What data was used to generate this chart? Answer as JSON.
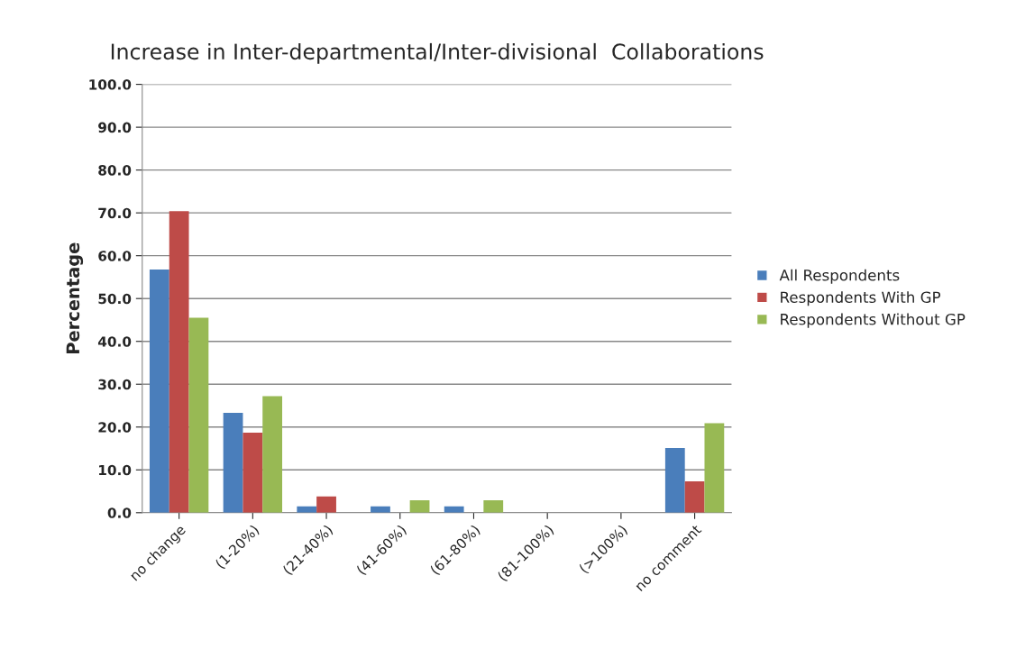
{
  "chart_data": {
    "type": "bar",
    "title": "Increase in Inter-departmental/Inter-divisional  Collaborations",
    "ylabel": "Percentage",
    "categories": [
      "no change",
      "(1-20%)",
      "(21-40%)",
      "(41-60%)",
      "(61-80%)",
      "(81-100%)",
      "(>100%)",
      "no comment"
    ],
    "series": [
      {
        "name": "All Respondents",
        "color": "#4a7ebb",
        "values": [
          56.8,
          23.3,
          1.5,
          1.5,
          1.5,
          0,
          0,
          15.1
        ]
      },
      {
        "name": "Respondents With GP",
        "color": "#be4b48",
        "values": [
          70.4,
          18.7,
          3.8,
          0,
          0,
          0,
          0,
          7.3
        ]
      },
      {
        "name": "Respondents Without GP",
        "color": "#98b954",
        "values": [
          45.5,
          27.2,
          0,
          2.9,
          2.9,
          0,
          0,
          20.9
        ]
      }
    ],
    "ylim": [
      0,
      100
    ],
    "yticks": [
      {
        "value": 0,
        "label": "0.0"
      },
      {
        "value": 10,
        "label": "10.0"
      },
      {
        "value": 20,
        "label": "20.0"
      },
      {
        "value": 30,
        "label": "30.0"
      },
      {
        "value": 40,
        "label": "40.0"
      },
      {
        "value": 50,
        "label": "50.0"
      },
      {
        "value": 60,
        "label": "60.0"
      },
      {
        "value": 70,
        "label": "70.0"
      },
      {
        "value": 80,
        "label": "80.0"
      },
      {
        "value": 90,
        "label": "90.0"
      },
      {
        "value": 100,
        "label": "100.0"
      }
    ],
    "grid": "y",
    "legend": "right"
  }
}
